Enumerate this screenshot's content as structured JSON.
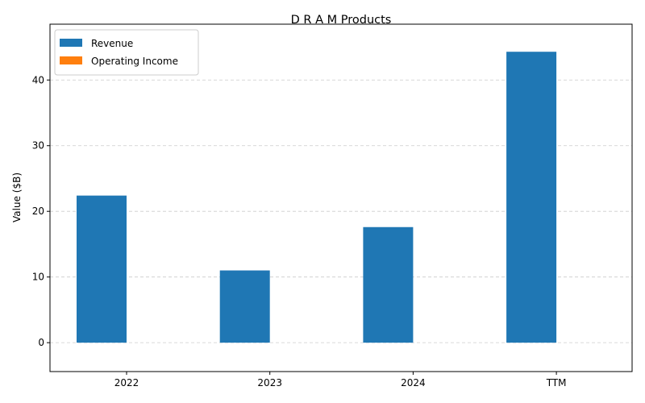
{
  "chart_data": {
    "type": "bar",
    "title": "D R A M Products",
    "xlabel": "",
    "ylabel": "Value ($B)",
    "categories": [
      "2022",
      "2023",
      "2024",
      "TTM"
    ],
    "series": [
      {
        "name": "Revenue",
        "color": "#1f77b4",
        "values": [
          22.4,
          11.0,
          17.6,
          44.3
        ]
      },
      {
        "name": "Operating Income",
        "color": "#ff7f0e",
        "values": [
          0,
          0,
          0,
          0
        ]
      }
    ],
    "ylim": [
      -4.4,
      48.5
    ],
    "yticks": [
      0,
      10,
      20,
      30,
      40
    ],
    "grid": true,
    "legend_position": "top-left"
  }
}
